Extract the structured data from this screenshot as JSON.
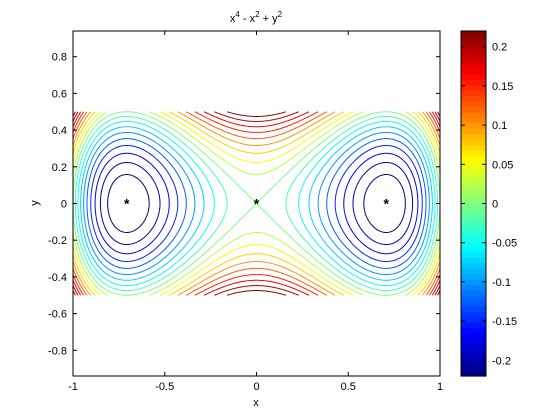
{
  "chart_data": {
    "type": "contour",
    "title": {
      "base1": "x",
      "sup1": "4",
      "base2": " - x",
      "sup2": "2",
      "base3": " + y",
      "sup3": "2"
    },
    "xlabel": "x",
    "ylabel": "y",
    "function": "x^4 - x^2 + y^2",
    "xlim": [
      -1,
      1
    ],
    "ylim": [
      -0.94,
      0.94
    ],
    "domain": {
      "x": [
        -1,
        1
      ],
      "y": [
        -0.5,
        0.5
      ]
    },
    "x_ticks": [
      "-1",
      "-0.5",
      "0",
      "0.5",
      "1"
    ],
    "x_tick_values": [
      -1,
      -0.5,
      0,
      0.5,
      1
    ],
    "y_ticks": [
      "-0.8",
      "-0.6",
      "-0.4",
      "-0.2",
      "0",
      "0.2",
      "0.4",
      "0.6",
      "0.8"
    ],
    "y_tick_values": [
      -0.8,
      -0.6,
      -0.4,
      -0.2,
      0,
      0.2,
      0.4,
      0.6,
      0.8
    ],
    "contour_levels": [
      -0.225,
      -0.2,
      -0.175,
      -0.15,
      -0.125,
      -0.1,
      -0.075,
      -0.05,
      -0.025,
      0,
      0.025,
      0.05,
      0.075,
      0.1,
      0.125,
      0.15,
      0.175,
      0.2,
      0.225
    ],
    "critical_points": [
      {
        "x": -0.7071,
        "y": 0
      },
      {
        "x": 0,
        "y": 0
      },
      {
        "x": 0.7071,
        "y": 0
      }
    ],
    "marker": "*",
    "colormap": "jet",
    "colorbar": {
      "range": [
        -0.22,
        0.22
      ],
      "ticks": [
        "-0.2",
        "-0.15",
        "-0.1",
        "-0.05",
        "0",
        "0.05",
        "0.1",
        "0.15",
        "0.2"
      ],
      "tick_values": [
        -0.2,
        -0.15,
        -0.1,
        -0.05,
        0,
        0.05,
        0.1,
        0.15,
        0.2
      ]
    },
    "grid": false
  }
}
